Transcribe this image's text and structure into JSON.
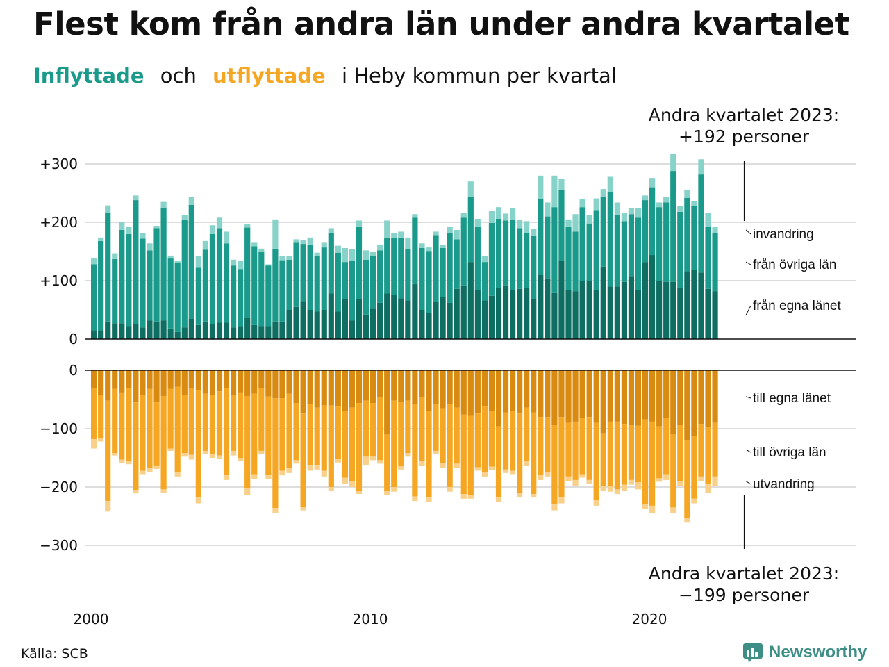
{
  "title": "Flest kom från andra län under andra kvartalet",
  "subtitle": {
    "inflow_word": "Inflyttade",
    "and_word": "och",
    "outflow_word": "utflyttade",
    "rest": "i Heby kommun per kvartal"
  },
  "callout_top": {
    "line1": "Andra kvartalet 2023:",
    "line2": "+192 personer"
  },
  "callout_bottom": {
    "line1": "Andra kvartalet 2023:",
    "line2": "−199 personer"
  },
  "source": "Källa: SCB",
  "logo_text": "Newsworthy",
  "colors": {
    "in_own": "#0e6e62",
    "in_other": "#1a9a8a",
    "in_imm": "#88d3c9",
    "out_own": "#d98a10",
    "out_other": "#f5a623",
    "out_emi": "#f8d08a",
    "grid": "#dddddd",
    "logo": "#3d8f86"
  },
  "chart_data": {
    "type": "bar",
    "stacked": true,
    "x_start": "2000 Q1",
    "x_ticks": [
      "2000",
      "2010",
      "2020"
    ],
    "grid": true,
    "top_panel": {
      "yticks": [
        "+300",
        "+200",
        "+100",
        "0"
      ],
      "ylim": [
        0,
        300
      ],
      "segment_labels": [
        "invandring",
        "från övriga län",
        "från egna länet"
      ],
      "series": [
        {
          "name": "från egna länet",
          "values": [
            15,
            15,
            30,
            27,
            27,
            22,
            25,
            20,
            32,
            30,
            32,
            18,
            12,
            20,
            35,
            24,
            30,
            25,
            28,
            28,
            20,
            22,
            36,
            24,
            22,
            22,
            30,
            30,
            50,
            55,
            65,
            50,
            47,
            50,
            78,
            47,
            68,
            32,
            68,
            42,
            52,
            62,
            78,
            76,
            70,
            66,
            94,
            50,
            45,
            64,
            72,
            62,
            86,
            92,
            132,
            84,
            66,
            74,
            88,
            92,
            84,
            86,
            88,
            68,
            110,
            104,
            80,
            134,
            84,
            82,
            100,
            100,
            84,
            124,
            90,
            90,
            98,
            108,
            84,
            132,
            144,
            100,
            98,
            98,
            88,
            116,
            118,
            114,
            86,
            82
          ]
        },
        {
          "name": "från övriga län",
          "values": [
            113,
            153,
            187,
            110,
            160,
            158,
            213,
            152,
            120,
            160,
            193,
            120,
            118,
            184,
            195,
            98,
            123,
            155,
            162,
            136,
            106,
            98,
            155,
            135,
            128,
            104,
            125,
            105,
            86,
            110,
            98,
            112,
            95,
            107,
            104,
            101,
            64,
            102,
            125,
            94,
            90,
            90,
            95,
            97,
            104,
            88,
            114,
            106,
            106,
            114,
            84,
            120,
            85,
            116,
            112,
            109,
            66,
            125,
            118,
            111,
            120,
            104,
            94,
            109,
            130,
            106,
            146,
            122,
            109,
            102,
            126,
            98,
            137,
            119,
            162,
            122,
            104,
            106,
            124,
            106,
            116,
            126,
            136,
            190,
            130,
            126,
            110,
            168,
            106,
            100
          ]
        },
        {
          "name": "invandring",
          "values": [
            10,
            6,
            12,
            10,
            14,
            12,
            8,
            10,
            12,
            4,
            10,
            5,
            4,
            8,
            14,
            20,
            15,
            15,
            18,
            20,
            10,
            14,
            6,
            6,
            5,
            2,
            50,
            7,
            6,
            6,
            6,
            12,
            6,
            8,
            8,
            12,
            24,
            20,
            10,
            16,
            8,
            10,
            30,
            8,
            10,
            20,
            6,
            8,
            6,
            6,
            6,
            10,
            16,
            8,
            26,
            13,
            10,
            20,
            20,
            12,
            20,
            14,
            20,
            12,
            40,
            24,
            54,
            18,
            12,
            30,
            14,
            14,
            20,
            14,
            26,
            22,
            14,
            10,
            16,
            8,
            16,
            8,
            10,
            30,
            10,
            14,
            8,
            26,
            24,
            10
          ]
        }
      ]
    },
    "bottom_panel": {
      "yticks": [
        "0",
        "−100",
        "−200",
        "−300"
      ],
      "ylim": [
        -300,
        0
      ],
      "segment_labels": [
        "till egna länet",
        "till övriga län",
        "utvandring"
      ],
      "series": [
        {
          "name": "till egna länet",
          "values": [
            30,
            42,
            52,
            32,
            38,
            30,
            55,
            42,
            32,
            55,
            44,
            32,
            28,
            42,
            30,
            34,
            40,
            42,
            36,
            30,
            42,
            38,
            44,
            40,
            30,
            45,
            48,
            48,
            40,
            56,
            74,
            58,
            64,
            60,
            60,
            62,
            70,
            64,
            56,
            52,
            56,
            46,
            110,
            52,
            54,
            52,
            58,
            46,
            70,
            58,
            65,
            58,
            64,
            76,
            78,
            74,
            62,
            70,
            96,
            72,
            70,
            74,
            64,
            72,
            80,
            80,
            94,
            80,
            90,
            88,
            82,
            80,
            90,
            108,
            88,
            88,
            92,
            94,
            95,
            84,
            88,
            96,
            82,
            110,
            94,
            120,
            112,
            92,
            98,
            90
          ]
        },
        {
          "name": "till övriga län",
          "values": [
            88,
            74,
            172,
            110,
            115,
            125,
            150,
            130,
            136,
            108,
            160,
            102,
            146,
            100,
            115,
            184,
            98,
            102,
            110,
            150,
            96,
            112,
            158,
            138,
            108,
            135,
            188,
            124,
            128,
            98,
            160,
            104,
            98,
            112,
            140,
            90,
            114,
            126,
            150,
            96,
            92,
            108,
            96,
            148,
            110,
            90,
            158,
            110,
            148,
            80,
            94,
            142,
            96,
            136,
            136,
            92,
            112,
            95,
            122,
            98,
            102,
            136,
            92,
            140,
            100,
            94,
            136,
            138,
            92,
            100,
            96,
            108,
            132,
            90,
            110,
            116,
            104,
            94,
            97,
            145,
            144,
            89,
            96,
            125,
            96,
            133,
            108,
            90,
            96,
            92
          ]
        },
        {
          "name": "utvandring",
          "values": [
            16,
            6,
            18,
            4,
            6,
            6,
            6,
            6,
            6,
            6,
            6,
            4,
            8,
            6,
            8,
            10,
            6,
            6,
            6,
            8,
            8,
            6,
            12,
            8,
            6,
            6,
            8,
            8,
            8,
            6,
            6,
            10,
            8,
            10,
            6,
            6,
            10,
            10,
            6,
            14,
            6,
            6,
            8,
            8,
            6,
            6,
            8,
            8,
            8,
            6,
            8,
            8,
            8,
            8,
            6,
            6,
            8,
            6,
            8,
            6,
            6,
            8,
            8,
            6,
            8,
            8,
            10,
            10,
            8,
            10,
            6,
            6,
            10,
            8,
            10,
            8,
            10,
            8,
            12,
            8,
            12,
            6,
            10,
            10,
            8,
            8,
            8,
            8,
            16,
            16
          ]
        }
      ]
    }
  }
}
